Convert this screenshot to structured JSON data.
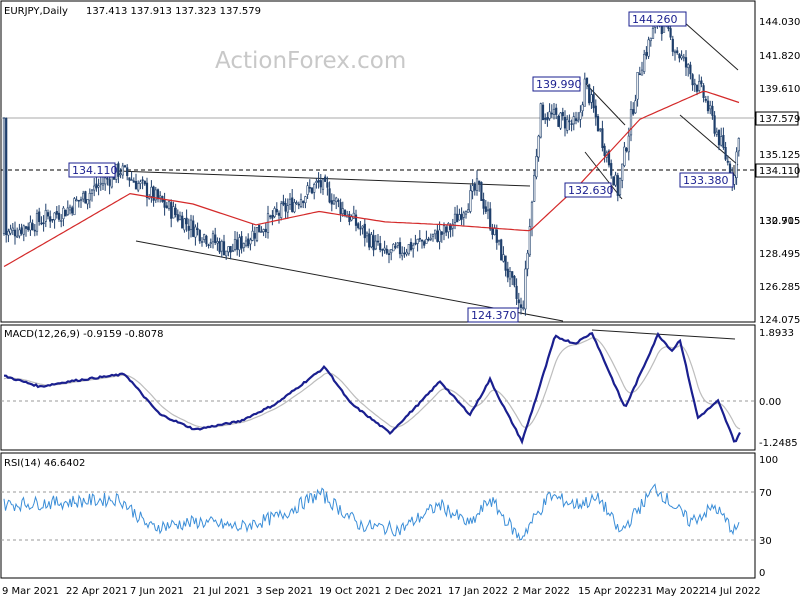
{
  "header": {
    "symbol": "EURJPY,Daily",
    "ohlc": "137.413 137.913 137.323 137.579"
  },
  "watermark": "ActionForex.com",
  "colors": {
    "candle": "#1f3f6b",
    "ma": "#d42a2a",
    "macd": "#1a1f8f",
    "signal": "#bdbdbd",
    "rsi": "#3b8ed8",
    "trendline": "#222222",
    "current_price_box": "#ffffff",
    "level_box": "#ffffff"
  },
  "price_axis": {
    "ticks": [
      "144.030",
      "141.820",
      "139.610",
      "137.579",
      "135.125",
      "132.915",
      "130.705",
      "128.495",
      "126.285",
      "124.075"
    ],
    "current": "137.579",
    "level": "134.110"
  },
  "annotations": [
    "134.110",
    "139.990",
    "132.630",
    "144.260",
    "133.380",
    "124.370"
  ],
  "macd": {
    "label": "MACD(12,26,9) -0.9159 -0.8078",
    "ticks": [
      "1.8933",
      "0.00",
      "-1.2485"
    ]
  },
  "rsi": {
    "label": "RSI(14) 46.6402",
    "ticks": [
      "100",
      "70",
      "30",
      "0"
    ]
  },
  "x_axis": {
    "labels": [
      "9 Mar 2021",
      "22 Apr 2021",
      "7 Jun 2021",
      "21 Jul 2021",
      "3 Sep 2021",
      "19 Oct 2021",
      "2 Dec 2021",
      "17 Jan 2022",
      "2 Mar 2022",
      "15 Apr 2022",
      "31 May 2022",
      "14 Jul 2022"
    ]
  },
  "chart_data": {
    "type": "candlestick",
    "symbol": "EURJPY",
    "timeframe": "Daily",
    "last": {
      "open": 137.413,
      "high": 137.913,
      "low": 137.323,
      "close": 137.579
    },
    "price_path_anchors": [
      {
        "date": "9 Mar 2021",
        "close": 129.8
      },
      {
        "date": "22 Apr 2021",
        "close": 131.4
      },
      {
        "date": "late May 2021",
        "close": 134.11
      },
      {
        "date": "21 Jul 2021",
        "close": 130.2
      },
      {
        "date": "Aug 2021",
        "close": 128.6
      },
      {
        "date": "3 Sep 2021",
        "close": 130.0
      },
      {
        "date": "19 Oct 2021",
        "close": 133.2
      },
      {
        "date": "2 Dec 2021",
        "close": 128.3
      },
      {
        "date": "17 Jan 2022",
        "close": 130.0
      },
      {
        "date": "late Jan 2022",
        "close": 133.0
      },
      {
        "date": "7 Mar 2022",
        "close": 124.37
      },
      {
        "date": "28 Mar 2022",
        "close": 138.0
      },
      {
        "date": "15 Apr 2022",
        "close": 137.0
      },
      {
        "date": "21 Apr 2022",
        "close": 139.99
      },
      {
        "date": "12 May 2022",
        "close": 132.63
      },
      {
        "date": "31 May 2022",
        "close": 141.0
      },
      {
        "date": "mid Jun 2022",
        "close": 144.26
      },
      {
        "date": "14 Jul 2022",
        "close": 139.0
      },
      {
        "date": "2 Aug 2022",
        "close": 133.38
      },
      {
        "date": "last",
        "close": 137.579
      }
    ],
    "horizontal_level": 134.11,
    "moving_average_anchors": [
      {
        "date": "9 Mar 2021",
        "value": 127.6
      },
      {
        "date": "22 Apr 2021",
        "value": 130.0
      },
      {
        "date": "7 Jun 2021",
        "value": 132.5
      },
      {
        "date": "21 Jul 2021",
        "value": 131.8
      },
      {
        "date": "3 Sep 2021",
        "value": 130.4
      },
      {
        "date": "19 Oct 2021",
        "value": 131.3
      },
      {
        "date": "2 Dec 2021",
        "value": 130.6
      },
      {
        "date": "17 Jan 2022",
        "value": 130.4
      },
      {
        "date": "2 Mar 2022",
        "value": 130.0
      },
      {
        "date": "15 Apr 2022",
        "value": 133.0
      },
      {
        "date": "31 May 2022",
        "value": 137.5
      },
      {
        "date": "14 Jul 2022",
        "value": 139.4
      },
      {
        "date": "last",
        "value": 138.6
      }
    ],
    "macd": {
      "params": "12,26,9",
      "value": -0.9159,
      "signal": -0.8078,
      "ylim": [
        -1.2485,
        1.8933
      ]
    },
    "rsi": {
      "period": 14,
      "value": 46.6402,
      "levels": [
        30,
        70
      ],
      "ylim": [
        0,
        100
      ]
    },
    "ylim": [
      124.075,
      144.8
    ]
  }
}
